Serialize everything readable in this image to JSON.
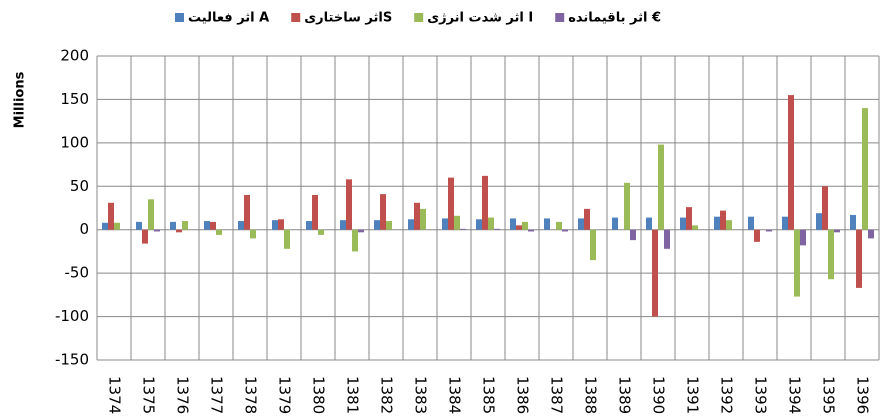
{
  "chart_data": {
    "type": "bar",
    "y_label": "Millions",
    "categories": [
      "1374",
      "1375",
      "1376",
      "1377",
      "1378",
      "1379",
      "1380",
      "1381",
      "1382",
      "1383",
      "1384",
      "1385",
      "1386",
      "1387",
      "1388",
      "1389",
      "1390",
      "1391",
      "1392",
      "1393",
      "1394",
      "1395",
      "1396"
    ],
    "series": [
      {
        "name": "اثر فعالیت A",
        "color": "#4f81bd",
        "values": [
          8,
          9,
          9,
          10,
          10,
          11,
          10,
          11,
          11,
          12,
          13,
          12,
          13,
          13,
          13,
          14,
          14,
          14,
          15,
          15,
          15,
          19,
          17
        ]
      },
      {
        "name": "اثر ساختاریS",
        "color": "#c0504d",
        "values": [
          31,
          -16,
          -3,
          9,
          40,
          12,
          40,
          58,
          41,
          31,
          60,
          62,
          5,
          0,
          24,
          0,
          -100,
          26,
          22,
          -14,
          155,
          50,
          -67
        ]
      },
      {
        "name": "اثر شدت انرژی I",
        "color": "#9bbb59",
        "values": [
          8,
          35,
          10,
          -6,
          -10,
          -22,
          -6,
          -25,
          10,
          24,
          16,
          14,
          9,
          9,
          -35,
          54,
          98,
          5,
          11,
          0,
          -77,
          -57,
          140
        ]
      },
      {
        "name": "اثر باقیمانده €",
        "color": "#8064a2",
        "values": [
          0,
          -2,
          0,
          0,
          0,
          0,
          0,
          -3,
          0,
          0,
          1,
          1,
          -2,
          -2,
          0,
          -12,
          -22,
          0,
          0,
          -2,
          -18,
          -3,
          -10
        ]
      }
    ],
    "ylim": [
      -150,
      200
    ],
    "yticks": [
      -150,
      -100,
      -50,
      0,
      50,
      100,
      150,
      200
    ],
    "grid": true,
    "legend": "top"
  }
}
